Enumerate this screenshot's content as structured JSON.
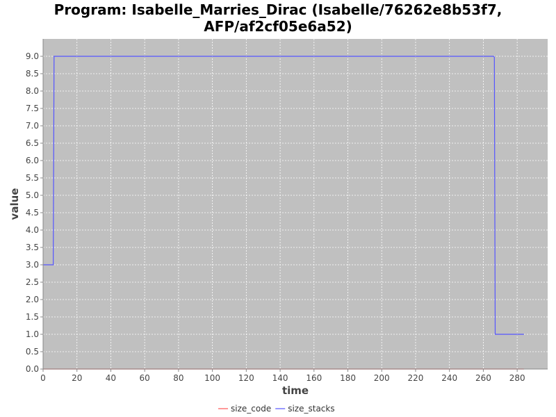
{
  "chart_data": {
    "type": "line",
    "title_line1": "Program: Isabelle_Marries_Dirac (Isabelle/76262e8b53f7,",
    "title_line2": "AFP/af2cf05e6a52)",
    "xlabel": "time",
    "ylabel": "value",
    "xlim": [
      0,
      298
    ],
    "ylim": [
      0,
      9.5
    ],
    "x_ticks": [
      0,
      20,
      40,
      60,
      80,
      100,
      120,
      140,
      160,
      180,
      200,
      220,
      240,
      260,
      280
    ],
    "y_ticks": [
      0.0,
      0.5,
      1.0,
      1.5,
      2.0,
      2.5,
      3.0,
      3.5,
      4.0,
      4.5,
      5.0,
      5.5,
      6.0,
      6.5,
      7.0,
      7.5,
      8.0,
      8.5,
      9.0
    ],
    "y_tick_labels": [
      "0.0",
      "0.5",
      "1.0",
      "1.5",
      "2.0",
      "2.5",
      "3.0",
      "3.5",
      "4.0",
      "4.5",
      "5.0",
      "5.5",
      "6.0",
      "6.5",
      "7.0",
      "7.5",
      "8.0",
      "8.5",
      "9.0"
    ],
    "grid": true,
    "legend_position": "bottom-center",
    "plot_background": "#c0c0c0",
    "series": [
      {
        "name": "size_code",
        "color": "#ff5555",
        "x": [
          0,
          284
        ],
        "y": [
          0,
          0
        ]
      },
      {
        "name": "size_stacks",
        "color": "#5555ff",
        "x": [
          0,
          6,
          6.5,
          44,
          266,
          266.5,
          267,
          284
        ],
        "y": [
          3,
          3,
          9,
          9,
          9,
          8.98,
          1,
          1
        ]
      }
    ]
  }
}
